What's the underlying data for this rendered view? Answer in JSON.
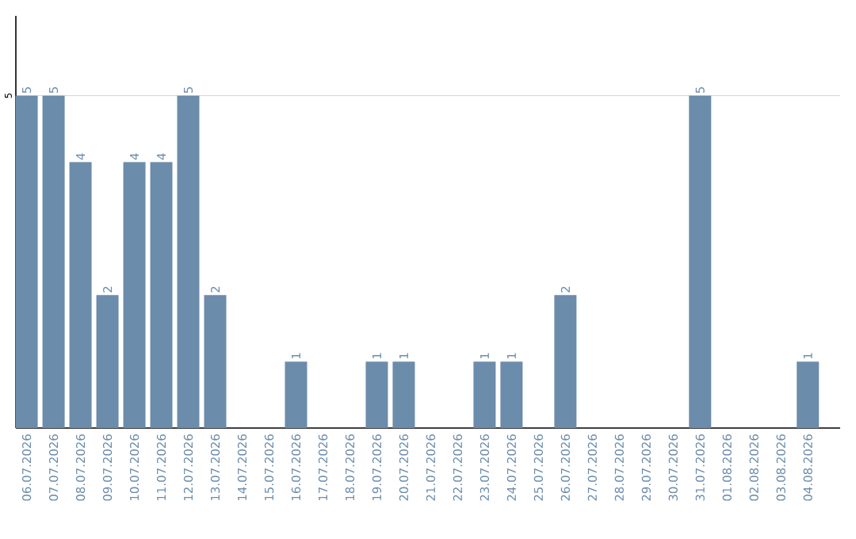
{
  "chart_data": {
    "type": "bar",
    "categories": [
      "06.07.2026",
      "07.07.2026",
      "08.07.2026",
      "09.07.2026",
      "10.07.2026",
      "11.07.2026",
      "12.07.2026",
      "13.07.2026",
      "14.07.2026",
      "15.07.2026",
      "16.07.2026",
      "17.07.2026",
      "18.07.2026",
      "19.07.2026",
      "20.07.2026",
      "21.07.2026",
      "22.07.2026",
      "23.07.2026",
      "24.07.2026",
      "25.07.2026",
      "26.07.2026",
      "27.07.2026",
      "28.07.2026",
      "29.07.2026",
      "30.07.2026",
      "31.07.2026",
      "01.08.2026",
      "02.08.2026",
      "03.08.2026",
      "04.08.2026"
    ],
    "values": [
      5,
      5,
      4,
      2,
      4,
      4,
      5,
      2,
      0,
      0,
      1,
      0,
      0,
      1,
      1,
      0,
      0,
      1,
      1,
      0,
      2,
      0,
      0,
      0,
      0,
      5,
      0,
      0,
      0,
      1
    ],
    "value_labels": [
      "5",
      "5",
      "4",
      "2",
      "4",
      "4",
      "5",
      "2",
      null,
      null,
      "1",
      null,
      null,
      "1",
      "1",
      null,
      null,
      "1",
      "1",
      null,
      "2",
      null,
      null,
      null,
      null,
      "5",
      null,
      null,
      null,
      "1"
    ],
    "color": "#6b8cab",
    "ylim": [
      0,
      6.2
    ],
    "yticks": [
      5
    ],
    "grid": "y"
  }
}
